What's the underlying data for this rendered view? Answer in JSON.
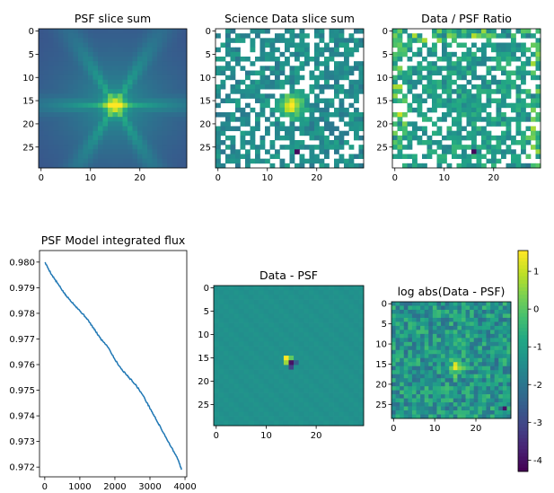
{
  "chart_data": [
    {
      "type": "heatmap",
      "title": "PSF slice sum",
      "x_ticks": [
        0,
        10,
        20
      ],
      "y_ticks": [
        0,
        5,
        10,
        15,
        20,
        25
      ],
      "grid_size": 30,
      "colormap": "viridis",
      "pattern": "centered star-shaped point spread function, peak near (15, 16)"
    },
    {
      "type": "heatmap",
      "title": "Science Data slice sum",
      "x_ticks": [
        0,
        10,
        20
      ],
      "y_ticks": [
        0,
        5,
        10,
        15,
        20,
        25
      ],
      "grid_size": 30,
      "colormap": "viridis",
      "pattern": "noisy data with many masked (white) pixels, source near (15, 16)"
    },
    {
      "type": "heatmap",
      "title": "Data / PSF Ratio",
      "x_ticks": [
        0,
        10,
        20
      ],
      "y_ticks": [
        0,
        5,
        10,
        15,
        20,
        25
      ],
      "grid_size": 30,
      "colormap": "viridis",
      "pattern": "noisy ratio with masked pixels, brighter values near edges"
    },
    {
      "type": "line",
      "title": "PSF Model integrated flux",
      "x": [
        0,
        200,
        400,
        600,
        800,
        1000,
        1200,
        1400,
        1600,
        1800,
        2000,
        2200,
        2400,
        2600,
        2800,
        3000,
        3200,
        3400,
        3600,
        3800,
        3900
      ],
      "y": [
        0.98,
        0.9795,
        0.9791,
        0.9787,
        0.9784,
        0.9781,
        0.9778,
        0.9774,
        0.977,
        0.9767,
        0.9762,
        0.9758,
        0.9755,
        0.9752,
        0.9748,
        0.9743,
        0.9738,
        0.9733,
        0.9728,
        0.9723,
        0.9719
      ],
      "xlim": [
        -150,
        4050
      ],
      "ylim": [
        0.97162,
        0.98045
      ],
      "x_ticks": [
        0,
        1000,
        2000,
        3000,
        4000
      ],
      "y_ticks": [
        "0.972",
        "0.973",
        "0.974",
        "0.975",
        "0.976",
        "0.977",
        "0.978",
        "0.979",
        "0.980"
      ],
      "color": "#1f77b4"
    },
    {
      "type": "heatmap",
      "title": "Data - PSF",
      "x_ticks": [
        0,
        10,
        20
      ],
      "y_ticks": [
        0,
        5,
        10,
        15,
        20,
        25
      ],
      "grid_size": 30,
      "colormap": "viridis",
      "pattern": "flat residual with compact dipole at center (15, 15-16)"
    },
    {
      "type": "heatmap",
      "title": "log abs(Data - PSF)",
      "x_ticks": [
        0,
        10,
        20
      ],
      "y_ticks": [
        0,
        5,
        10,
        15,
        20,
        25
      ],
      "grid_size": 29,
      "colormap": "viridis",
      "pattern": "noisy log residual with bright spot near (15, 16)",
      "colorbar": {
        "ticks": [
          1,
          0,
          -1,
          -2,
          -3,
          -4
        ],
        "range": [
          -4.3,
          1.55
        ]
      }
    }
  ]
}
